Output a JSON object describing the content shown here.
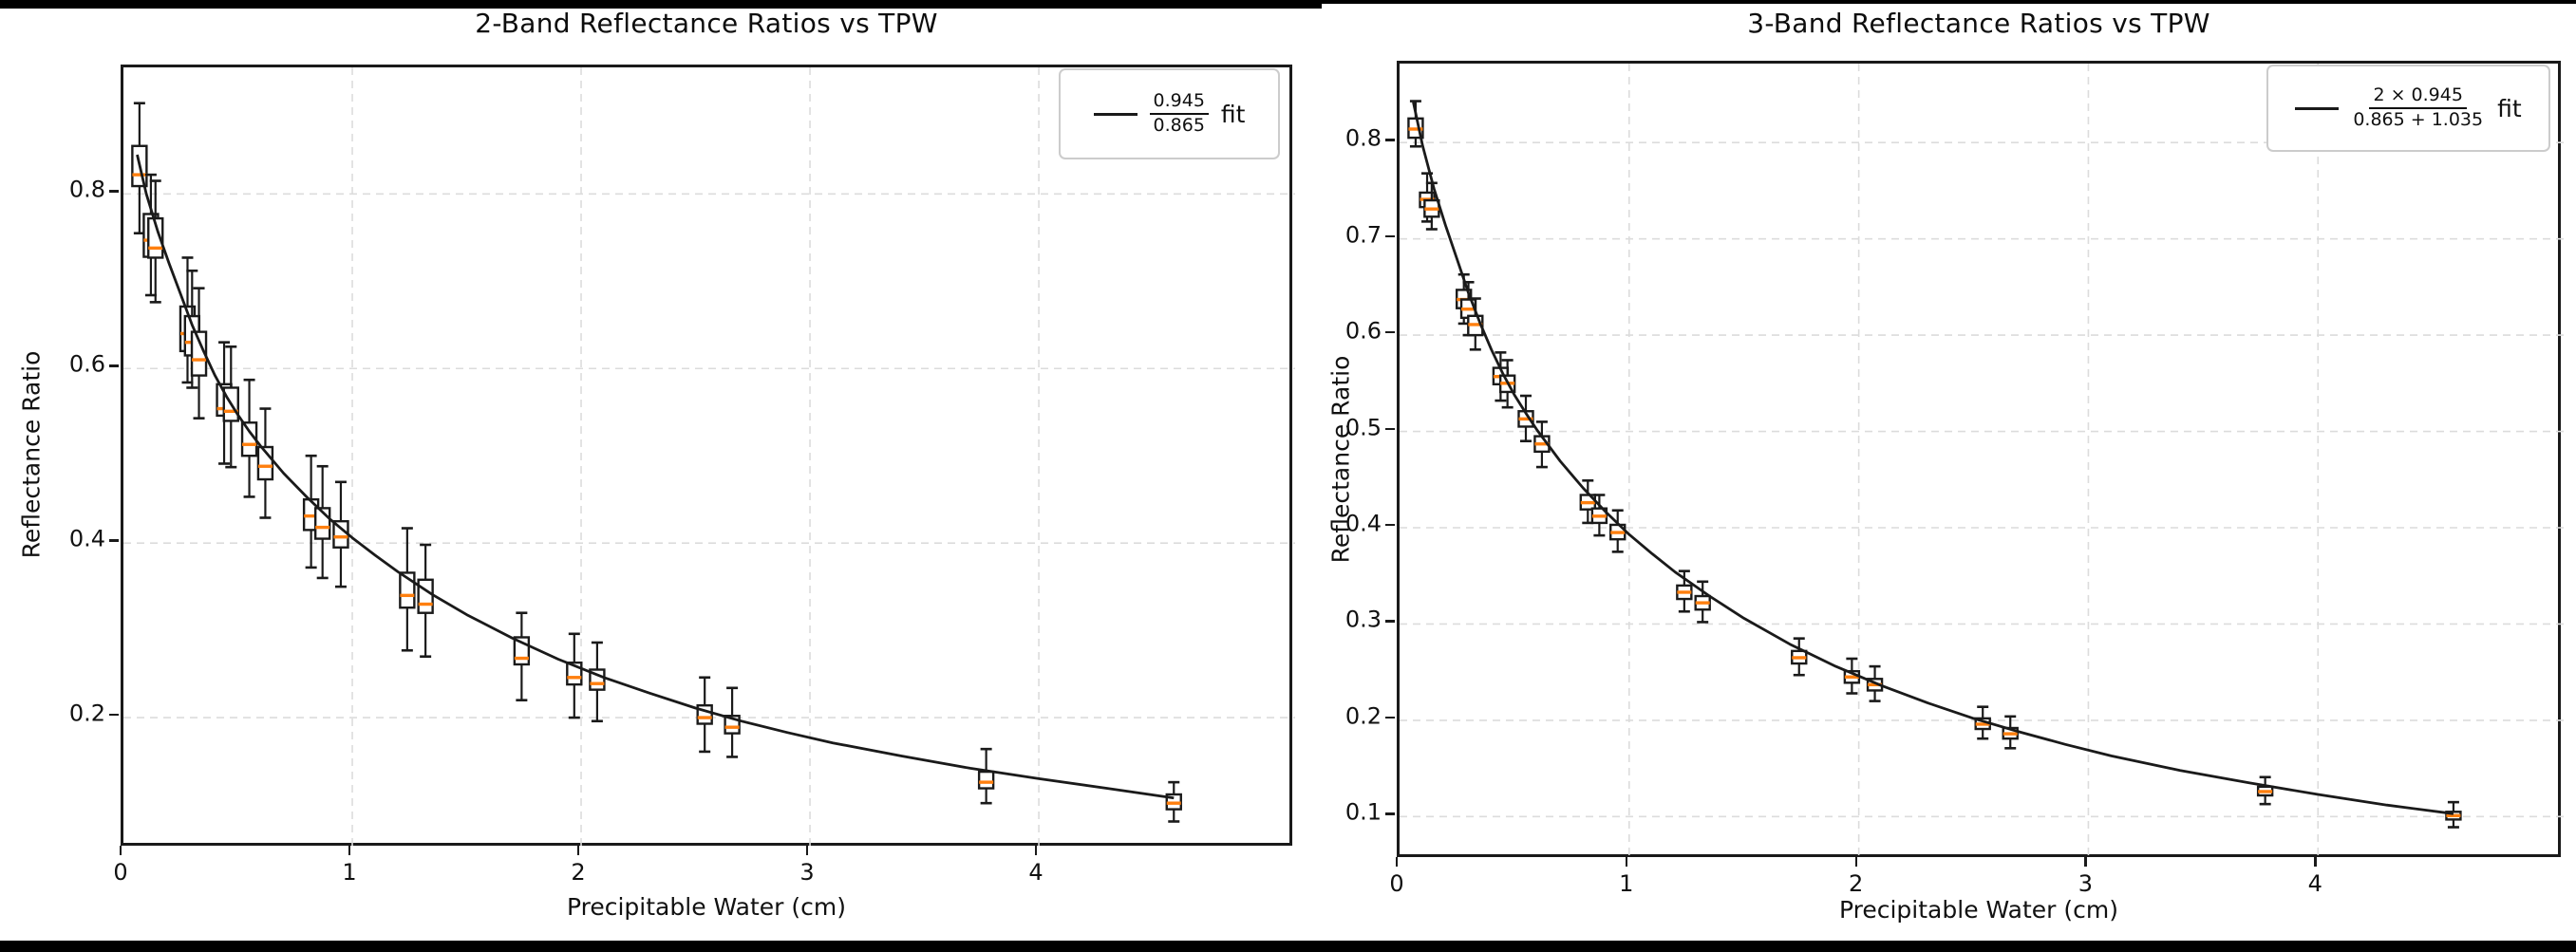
{
  "figure": {
    "background": "#ffffff",
    "top_bar_color": "#000000",
    "bottom_bar_color": "#000000"
  },
  "colors": {
    "median": "#ff7f0e",
    "box_edge": "#1a1a1a",
    "whisker": "#1a1a1a",
    "fit_line": "#1a1a1a",
    "grid": "#dcdcdc",
    "spine": "#1a1a1a",
    "legend_border": "#cccccc"
  },
  "chart_data": [
    {
      "type": "boxplot+line",
      "title": "2-Band Reflectance Ratios vs TPW",
      "xlabel": "Precipitable Water (cm)",
      "ylabel": "Reflectance Ratio",
      "legend": {
        "numerator": "0.945",
        "denominator": "0.865",
        "suffix": "fit",
        "position": "upper right"
      },
      "xlim": [
        0,
        5.12
      ],
      "ylim": [
        0.05,
        0.945
      ],
      "xticks": [
        0,
        1,
        2,
        3,
        4
      ],
      "xtick_labels": [
        "0",
        "1",
        "2",
        "3",
        "4"
      ],
      "yticks": [
        0.2,
        0.4,
        0.6,
        0.8
      ],
      "ytick_labels": [
        "0.2",
        "0.4",
        "0.6",
        "0.8"
      ],
      "grid": "dashed",
      "boxes": [
        {
          "x": 0.07,
          "whislo": 0.755,
          "q1": 0.809,
          "med": 0.822,
          "q3": 0.855,
          "whishi": 0.904
        },
        {
          "x": 0.12,
          "whislo": 0.684,
          "q1": 0.728,
          "med": 0.747,
          "q3": 0.777,
          "whishi": 0.822
        },
        {
          "x": 0.14,
          "whislo": 0.676,
          "q1": 0.727,
          "med": 0.738,
          "q3": 0.772,
          "whishi": 0.815
        },
        {
          "x": 0.28,
          "whislo": 0.584,
          "q1": 0.62,
          "med": 0.64,
          "q3": 0.671,
          "whishi": 0.727
        },
        {
          "x": 0.3,
          "whislo": 0.578,
          "q1": 0.615,
          "med": 0.63,
          "q3": 0.66,
          "whishi": 0.712
        },
        {
          "x": 0.33,
          "whislo": 0.543,
          "q1": 0.592,
          "med": 0.61,
          "q3": 0.642,
          "whishi": 0.692
        },
        {
          "x": 0.44,
          "whislo": 0.491,
          "q1": 0.546,
          "med": 0.554,
          "q3": 0.582,
          "whishi": 0.63
        },
        {
          "x": 0.47,
          "whislo": 0.487,
          "q1": 0.54,
          "med": 0.551,
          "q3": 0.578,
          "whishi": 0.625
        },
        {
          "x": 0.55,
          "whislo": 0.453,
          "q1": 0.5,
          "med": 0.513,
          "q3": 0.538,
          "whishi": 0.587
        },
        {
          "x": 0.62,
          "whislo": 0.429,
          "q1": 0.473,
          "med": 0.488,
          "q3": 0.51,
          "whishi": 0.554
        },
        {
          "x": 0.82,
          "whislo": 0.372,
          "q1": 0.415,
          "med": 0.431,
          "q3": 0.45,
          "whishi": 0.5
        },
        {
          "x": 0.87,
          "whislo": 0.36,
          "q1": 0.405,
          "med": 0.418,
          "q3": 0.44,
          "whishi": 0.488
        },
        {
          "x": 0.95,
          "whislo": 0.35,
          "q1": 0.395,
          "med": 0.407,
          "q3": 0.425,
          "whishi": 0.47
        },
        {
          "x": 1.24,
          "whislo": 0.277,
          "q1": 0.326,
          "med": 0.34,
          "q3": 0.366,
          "whishi": 0.417
        },
        {
          "x": 1.32,
          "whislo": 0.27,
          "q1": 0.32,
          "med": 0.33,
          "q3": 0.358,
          "whishi": 0.398
        },
        {
          "x": 1.74,
          "whislo": 0.22,
          "q1": 0.261,
          "med": 0.268,
          "q3": 0.292,
          "whishi": 0.32
        },
        {
          "x": 1.97,
          "whislo": 0.2,
          "q1": 0.238,
          "med": 0.246,
          "q3": 0.263,
          "whishi": 0.296
        },
        {
          "x": 2.07,
          "whislo": 0.196,
          "q1": 0.232,
          "med": 0.239,
          "q3": 0.255,
          "whishi": 0.286
        },
        {
          "x": 2.54,
          "whislo": 0.161,
          "q1": 0.193,
          "med": 0.2,
          "q3": 0.214,
          "whishi": 0.246
        },
        {
          "x": 2.66,
          "whislo": 0.155,
          "q1": 0.182,
          "med": 0.189,
          "q3": 0.202,
          "whishi": 0.234
        },
        {
          "x": 3.77,
          "whislo": 0.102,
          "q1": 0.119,
          "med": 0.126,
          "q3": 0.138,
          "whishi": 0.164
        },
        {
          "x": 4.59,
          "whislo": 0.081,
          "q1": 0.095,
          "med": 0.102,
          "q3": 0.112,
          "whishi": 0.126
        }
      ],
      "fit_curve": [
        [
          0.06,
          0.845
        ],
        [
          0.1,
          0.8
        ],
        [
          0.15,
          0.757
        ],
        [
          0.2,
          0.72
        ],
        [
          0.25,
          0.685
        ],
        [
          0.3,
          0.65
        ],
        [
          0.35,
          0.62
        ],
        [
          0.4,
          0.592
        ],
        [
          0.45,
          0.568
        ],
        [
          0.5,
          0.547
        ],
        [
          0.55,
          0.528
        ],
        [
          0.6,
          0.511
        ],
        [
          0.7,
          0.48
        ],
        [
          0.8,
          0.453
        ],
        [
          0.9,
          0.428
        ],
        [
          1.0,
          0.406
        ],
        [
          1.1,
          0.386
        ],
        [
          1.2,
          0.367
        ],
        [
          1.35,
          0.341
        ],
        [
          1.5,
          0.318
        ],
        [
          1.7,
          0.291
        ],
        [
          1.9,
          0.267
        ],
        [
          2.1,
          0.246
        ],
        [
          2.3,
          0.228
        ],
        [
          2.5,
          0.211
        ],
        [
          2.7,
          0.196
        ],
        [
          2.9,
          0.183
        ],
        [
          3.1,
          0.171
        ],
        [
          3.4,
          0.156
        ],
        [
          3.7,
          0.142
        ],
        [
          4.0,
          0.13
        ],
        [
          4.3,
          0.119
        ],
        [
          4.59,
          0.108
        ]
      ]
    },
    {
      "type": "boxplot+line",
      "title": "3-Band Reflectance Ratios vs TPW",
      "xlabel": "Precipitable Water (cm)",
      "ylabel": "Reflectance Ratio",
      "legend": {
        "numerator": "2 × 0.945",
        "denominator": "0.865 + 1.035",
        "suffix": "fit",
        "position": "upper right"
      },
      "xlim": [
        0,
        5.07
      ],
      "ylim": [
        0.055,
        0.882
      ],
      "xticks": [
        0,
        1,
        2,
        3,
        4
      ],
      "xtick_labels": [
        "0",
        "1",
        "2",
        "3",
        "4"
      ],
      "yticks": [
        0.1,
        0.2,
        0.3,
        0.4,
        0.5,
        0.6,
        0.7,
        0.8
      ],
      "ytick_labels": [
        "0.1",
        "0.2",
        "0.3",
        "0.4",
        "0.5",
        "0.6",
        "0.7",
        "0.8"
      ],
      "grid": "dashed",
      "boxes": [
        {
          "x": 0.07,
          "whislo": 0.796,
          "q1": 0.805,
          "med": 0.814,
          "q3": 0.825,
          "whishi": 0.843
        },
        {
          "x": 0.12,
          "whislo": 0.718,
          "q1": 0.733,
          "med": 0.741,
          "q3": 0.748,
          "whishi": 0.768
        },
        {
          "x": 0.14,
          "whislo": 0.71,
          "q1": 0.723,
          "med": 0.731,
          "q3": 0.74,
          "whishi": 0.758
        },
        {
          "x": 0.28,
          "whislo": 0.612,
          "q1": 0.628,
          "med": 0.637,
          "q3": 0.647,
          "whishi": 0.663
        },
        {
          "x": 0.3,
          "whislo": 0.6,
          "q1": 0.618,
          "med": 0.627,
          "q3": 0.637,
          "whishi": 0.655
        },
        {
          "x": 0.33,
          "whislo": 0.585,
          "q1": 0.6,
          "med": 0.611,
          "q3": 0.62,
          "whishi": 0.638
        },
        {
          "x": 0.44,
          "whislo": 0.532,
          "q1": 0.549,
          "med": 0.557,
          "q3": 0.566,
          "whishi": 0.582
        },
        {
          "x": 0.47,
          "whislo": 0.525,
          "q1": 0.541,
          "med": 0.55,
          "q3": 0.558,
          "whishi": 0.574
        },
        {
          "x": 0.55,
          "whislo": 0.49,
          "q1": 0.505,
          "med": 0.513,
          "q3": 0.521,
          "whishi": 0.537
        },
        {
          "x": 0.62,
          "whislo": 0.463,
          "q1": 0.479,
          "med": 0.487,
          "q3": 0.495,
          "whishi": 0.51
        },
        {
          "x": 0.82,
          "whislo": 0.405,
          "q1": 0.419,
          "med": 0.426,
          "q3": 0.434,
          "whishi": 0.449
        },
        {
          "x": 0.87,
          "whislo": 0.392,
          "q1": 0.405,
          "med": 0.412,
          "q3": 0.42,
          "whishi": 0.434
        },
        {
          "x": 0.95,
          "whislo": 0.375,
          "q1": 0.388,
          "med": 0.395,
          "q3": 0.403,
          "whishi": 0.418
        },
        {
          "x": 1.24,
          "whislo": 0.313,
          "q1": 0.326,
          "med": 0.333,
          "q3": 0.34,
          "whishi": 0.355
        },
        {
          "x": 1.32,
          "whislo": 0.302,
          "q1": 0.315,
          "med": 0.322,
          "q3": 0.329,
          "whishi": 0.344
        },
        {
          "x": 1.74,
          "whislo": 0.247,
          "q1": 0.259,
          "med": 0.265,
          "q3": 0.272,
          "whishi": 0.285
        },
        {
          "x": 1.97,
          "whislo": 0.228,
          "q1": 0.239,
          "med": 0.245,
          "q3": 0.251,
          "whishi": 0.264
        },
        {
          "x": 2.07,
          "whislo": 0.22,
          "q1": 0.231,
          "med": 0.237,
          "q3": 0.243,
          "whishi": 0.256
        },
        {
          "x": 2.54,
          "whislo": 0.181,
          "q1": 0.191,
          "med": 0.196,
          "q3": 0.202,
          "whishi": 0.214
        },
        {
          "x": 2.66,
          "whislo": 0.171,
          "q1": 0.181,
          "med": 0.186,
          "q3": 0.192,
          "whishi": 0.204
        },
        {
          "x": 3.77,
          "whislo": 0.113,
          "q1": 0.122,
          "med": 0.126,
          "q3": 0.131,
          "whishi": 0.141
        },
        {
          "x": 4.59,
          "whislo": 0.089,
          "q1": 0.097,
          "med": 0.101,
          "q3": 0.105,
          "whishi": 0.115
        }
      ],
      "fit_curve": [
        [
          0.06,
          0.842
        ],
        [
          0.1,
          0.797
        ],
        [
          0.15,
          0.752
        ],
        [
          0.2,
          0.714
        ],
        [
          0.25,
          0.679
        ],
        [
          0.3,
          0.644
        ],
        [
          0.35,
          0.613
        ],
        [
          0.4,
          0.585
        ],
        [
          0.45,
          0.56
        ],
        [
          0.5,
          0.538
        ],
        [
          0.55,
          0.519
        ],
        [
          0.6,
          0.501
        ],
        [
          0.7,
          0.469
        ],
        [
          0.8,
          0.441
        ],
        [
          0.9,
          0.416
        ],
        [
          1.0,
          0.393
        ],
        [
          1.1,
          0.373
        ],
        [
          1.2,
          0.354
        ],
        [
          1.35,
          0.329
        ],
        [
          1.5,
          0.306
        ],
        [
          1.7,
          0.279
        ],
        [
          1.9,
          0.256
        ],
        [
          2.1,
          0.236
        ],
        [
          2.3,
          0.218
        ],
        [
          2.5,
          0.202
        ],
        [
          2.7,
          0.188
        ],
        [
          2.9,
          0.175
        ],
        [
          3.1,
          0.163
        ],
        [
          3.4,
          0.148
        ],
        [
          3.7,
          0.135
        ],
        [
          4.0,
          0.123
        ],
        [
          4.3,
          0.112
        ],
        [
          4.59,
          0.103
        ]
      ]
    }
  ]
}
